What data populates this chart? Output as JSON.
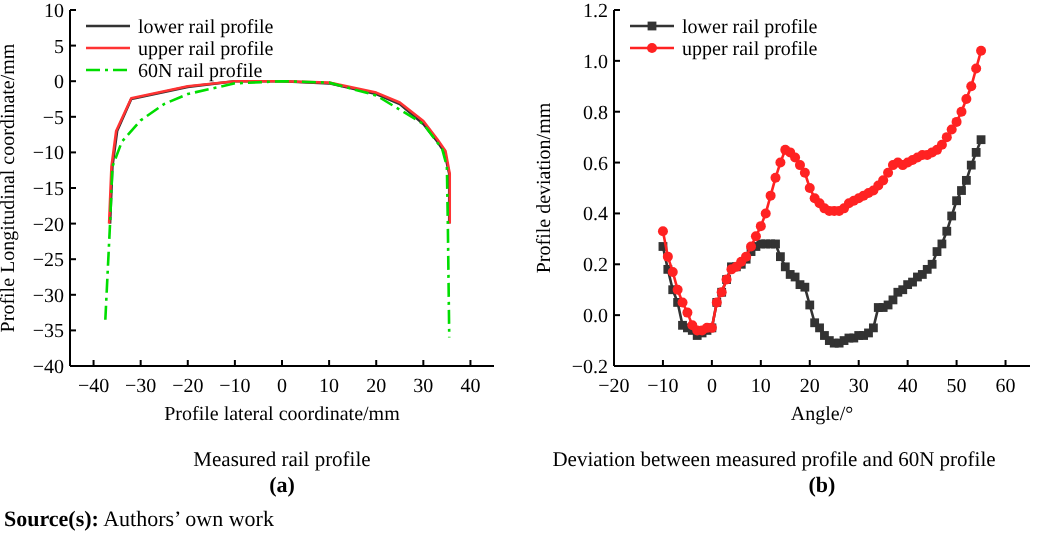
{
  "chart_data": [
    {
      "type": "line",
      "xlabel": "Profile lateral coordinate/mm",
      "ylabel": "Profile Longitudinal coordinate/mm",
      "xlim": [
        -45,
        45
      ],
      "ylim": [
        -40,
        10
      ],
      "xticks": [
        -40,
        -30,
        -20,
        -10,
        0,
        10,
        20,
        30,
        40
      ],
      "yticks": [
        -40,
        -35,
        -30,
        -25,
        -20,
        -15,
        -10,
        -5,
        0,
        5,
        10
      ],
      "legend": "top left",
      "annotations": [
        "Measured rail profile",
        "(a)",
        "Source(s): Authors’ own work"
      ],
      "series": [
        {
          "name": "lower rail profile",
          "color": "#333333",
          "marker": "none",
          "line_style": "solid",
          "x": [
            -36.5,
            -36,
            -35,
            -32,
            -20,
            -10,
            0,
            10,
            20,
            25,
            30,
            33,
            34.5,
            35.5,
            35.5
          ],
          "values": [
            -20,
            -12,
            -7,
            -2.5,
            -0.8,
            0,
            0,
            -0.3,
            -1.8,
            -3.2,
            -6,
            -8.5,
            -10,
            -13,
            -20
          ]
        },
        {
          "name": "upper rail profile",
          "color": "#ff3333",
          "marker": "none",
          "line_style": "solid",
          "x": [
            -36.7,
            -36.2,
            -35.2,
            -32,
            -20,
            -10,
            0,
            10,
            20,
            25,
            30,
            33,
            34.7,
            35.6,
            35.6
          ],
          "values": [
            -20,
            -12,
            -7,
            -2.4,
            -0.7,
            0,
            0,
            -0.2,
            -1.6,
            -3,
            -5.6,
            -8.2,
            -9.8,
            -13,
            -20
          ]
        },
        {
          "name": "60N rail profile",
          "color": "#00dd00",
          "marker": "none",
          "line_style": "dashed",
          "x": [
            -37.5,
            -36.5,
            -36,
            -34,
            -30,
            -25,
            -20,
            -10,
            0,
            10,
            20,
            30,
            34,
            35,
            35.2,
            35.5
          ],
          "values": [
            -33.5,
            -20,
            -12,
            -8.5,
            -5.5,
            -3.2,
            -1.8,
            -0.3,
            0,
            -0.2,
            -2,
            -6,
            -9.5,
            -12,
            -20,
            -36
          ]
        }
      ]
    },
    {
      "type": "line",
      "xlabel": "Angle/°",
      "ylabel": "Profile deviation/mm",
      "xlim": [
        -20,
        65
      ],
      "ylim": [
        -0.2,
        1.2
      ],
      "xticks": [
        -20,
        -10,
        0,
        10,
        20,
        30,
        40,
        50,
        60
      ],
      "yticks": [
        {
          "value": -0.2,
          "label": "−0.2"
        },
        {
          "value": 0,
          "label": "0.0"
        },
        {
          "value": 0.2,
          "label": "0.2"
        },
        {
          "value": 0.4,
          "label": "0.4"
        },
        {
          "value": 0.6,
          "label": "0.6"
        },
        {
          "value": 0.8,
          "label": "0.8"
        },
        {
          "value": 1,
          "label": "1.0"
        },
        {
          "value": 1.2,
          "label": "1.2"
        }
      ],
      "legend": "top left",
      "annotations": [
        "Deviation between measured profile and 60N profile",
        "(b)"
      ],
      "x": [
        -10,
        -9,
        -8,
        -7,
        -6,
        -5,
        -4,
        -3,
        -2,
        -1,
        0,
        1,
        2,
        3,
        4,
        5,
        6,
        7,
        8,
        9,
        10,
        11,
        12,
        13,
        14,
        15,
        16,
        17,
        18,
        19,
        20,
        21,
        22,
        23,
        24,
        25,
        26,
        27,
        28,
        29,
        30,
        31,
        32,
        33,
        34,
        35,
        36,
        37,
        38,
        39,
        40,
        41,
        42,
        43,
        44,
        45,
        46,
        47,
        48,
        49,
        50,
        51,
        52,
        53,
        54,
        55
      ],
      "series": [
        {
          "name": "lower rail profile",
          "color": "#333333",
          "marker": "square",
          "line_style": "solid",
          "values": [
            0.27,
            0.18,
            0.1,
            0.05,
            -0.04,
            -0.05,
            -0.06,
            -0.08,
            -0.07,
            -0.06,
            -0.05,
            0.05,
            0.09,
            0.14,
            0.19,
            0.19,
            0.2,
            0.22,
            0.25,
            0.27,
            0.28,
            0.28,
            0.28,
            0.28,
            0.23,
            0.19,
            0.16,
            0.15,
            0.12,
            0.11,
            0.04,
            -0.03,
            -0.05,
            -0.08,
            -0.1,
            -0.11,
            -0.11,
            -0.1,
            -0.09,
            -0.09,
            -0.08,
            -0.08,
            -0.07,
            -0.05,
            0.03,
            0.03,
            0.04,
            0.06,
            0.09,
            0.1,
            0.12,
            0.13,
            0.15,
            0.16,
            0.18,
            0.2,
            0.25,
            0.28,
            0.33,
            0.39,
            0.45,
            0.49,
            0.53,
            0.59,
            0.64,
            0.69
          ]
        },
        {
          "name": "upper rail profile",
          "color": "#ff2222",
          "marker": "circle",
          "line_style": "solid",
          "values": [
            0.33,
            0.23,
            0.17,
            0.1,
            0.05,
            0.01,
            -0.04,
            -0.06,
            -0.06,
            -0.05,
            -0.05,
            0.05,
            0.09,
            0.14,
            0.18,
            0.19,
            0.21,
            0.23,
            0.27,
            0.31,
            0.35,
            0.4,
            0.47,
            0.54,
            0.6,
            0.65,
            0.64,
            0.62,
            0.59,
            0.56,
            0.5,
            0.46,
            0.44,
            0.42,
            0.41,
            0.41,
            0.41,
            0.42,
            0.44,
            0.45,
            0.46,
            0.47,
            0.48,
            0.49,
            0.51,
            0.53,
            0.56,
            0.59,
            0.6,
            0.59,
            0.6,
            0.61,
            0.62,
            0.63,
            0.63,
            0.64,
            0.65,
            0.67,
            0.7,
            0.73,
            0.76,
            0.8,
            0.85,
            0.9,
            0.97,
            1.04
          ]
        }
      ]
    }
  ]
}
